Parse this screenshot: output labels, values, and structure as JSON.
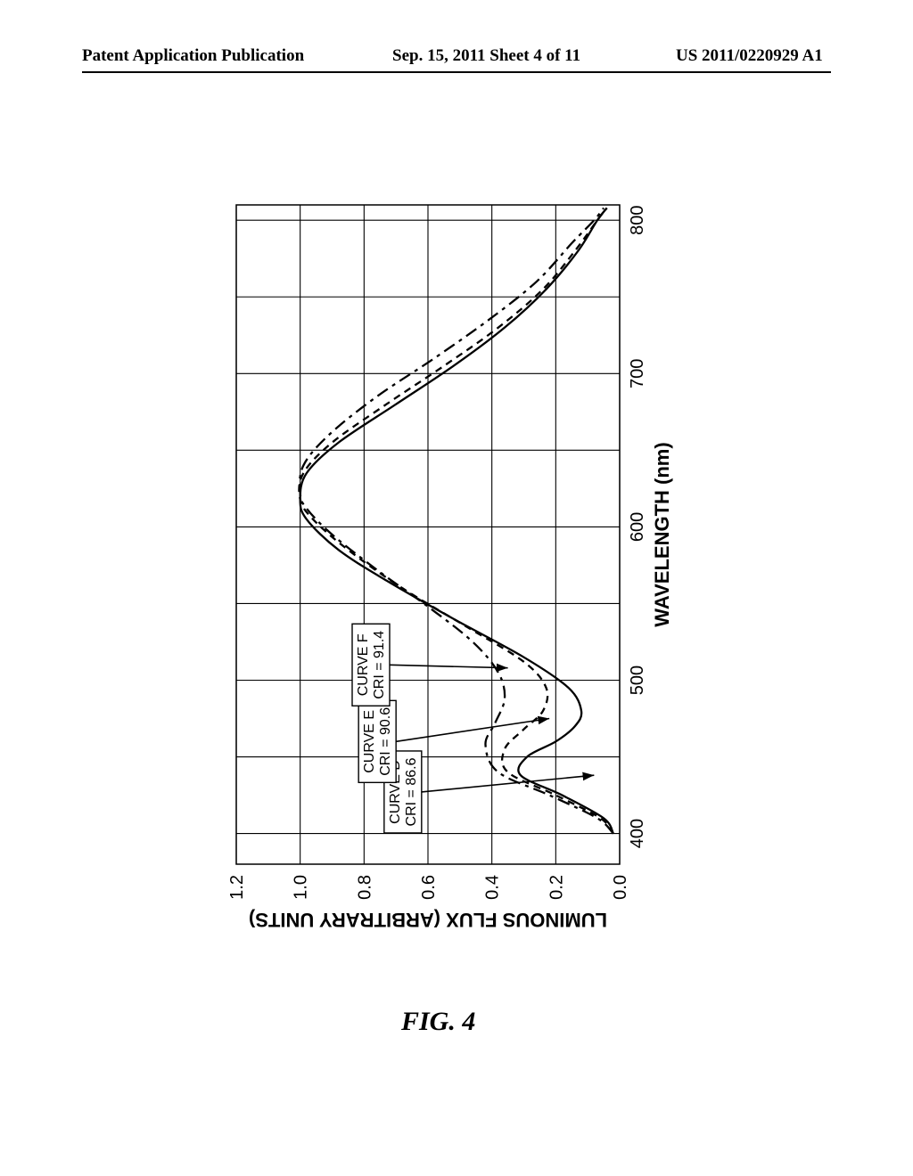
{
  "header": {
    "left": "Patent Application Publication",
    "center": "Sep. 15, 2011  Sheet 4 of 11",
    "right": "US 2011/0220929 A1"
  },
  "figure_caption": "FIG. 4",
  "chart": {
    "type": "line",
    "orientation": "rotated-90-ccw",
    "background_color": "#ffffff",
    "grid_color": "#000000",
    "axis_color": "#000000",
    "line_color": "#000000",
    "text_color": "#000000",
    "line_width_axis": 1.5,
    "line_width_grid": 1.1,
    "line_width_series": 2.3,
    "font_size_tick": 20,
    "font_size_axis_label": 22,
    "x_axis": {
      "label": "WAVELENGTH (nm)",
      "lim": [
        380,
        810
      ],
      "ticks": [
        400,
        500,
        600,
        700,
        800
      ],
      "minor_step": 50
    },
    "y_axis": {
      "label": "LUMINOUS FLUX (ARBITRARY UNITS)",
      "lim": [
        0.0,
        1.2
      ],
      "ticks": [
        0.0,
        0.2,
        0.4,
        0.6,
        0.8,
        1.0,
        1.2
      ],
      "tick_labels": [
        "0.0",
        "0.2",
        "0.4",
        "0.6",
        "0.8",
        "1.0",
        "1.2"
      ]
    },
    "curve_labels": [
      {
        "id": "D",
        "text_line1": "CURVE D",
        "text_line2": "CRI = 86.6",
        "arrow_to_x": 440,
        "arrow_to_y": 0.1
      },
      {
        "id": "E",
        "text_line1": "CURVE E",
        "text_line2": "CRI = 90.6",
        "arrow_to_x": 475,
        "arrow_to_y": 0.22
      },
      {
        "id": "F",
        "text_line1": "CURVE F",
        "text_line2": "CRI = 91.4",
        "arrow_to_x": 508,
        "arrow_to_y": 0.34
      }
    ],
    "series": [
      {
        "name": "Curve D",
        "dash": "none",
        "points": [
          [
            400,
            0.02
          ],
          [
            410,
            0.05
          ],
          [
            425,
            0.18
          ],
          [
            438,
            0.31
          ],
          [
            450,
            0.29
          ],
          [
            460,
            0.2
          ],
          [
            470,
            0.14
          ],
          [
            480,
            0.12
          ],
          [
            495,
            0.16
          ],
          [
            515,
            0.3
          ],
          [
            540,
            0.52
          ],
          [
            565,
            0.73
          ],
          [
            585,
            0.88
          ],
          [
            605,
            0.98
          ],
          [
            618,
            1.0
          ],
          [
            635,
            0.98
          ],
          [
            655,
            0.88
          ],
          [
            680,
            0.7
          ],
          [
            705,
            0.52
          ],
          [
            730,
            0.36
          ],
          [
            755,
            0.23
          ],
          [
            780,
            0.13
          ],
          [
            800,
            0.07
          ],
          [
            808,
            0.04
          ]
        ]
      },
      {
        "name": "Curve E",
        "dash": "8 6",
        "points": [
          [
            400,
            0.02
          ],
          [
            410,
            0.06
          ],
          [
            425,
            0.2
          ],
          [
            440,
            0.35
          ],
          [
            455,
            0.36
          ],
          [
            468,
            0.3
          ],
          [
            480,
            0.24
          ],
          [
            495,
            0.23
          ],
          [
            512,
            0.3
          ],
          [
            535,
            0.48
          ],
          [
            560,
            0.68
          ],
          [
            585,
            0.85
          ],
          [
            605,
            0.96
          ],
          [
            618,
            1.0
          ],
          [
            635,
            0.99
          ],
          [
            655,
            0.9
          ],
          [
            680,
            0.73
          ],
          [
            705,
            0.55
          ],
          [
            730,
            0.38
          ],
          [
            755,
            0.24
          ],
          [
            780,
            0.14
          ],
          [
            800,
            0.07
          ],
          [
            808,
            0.04
          ]
        ]
      },
      {
        "name": "Curve F",
        "dash": "14 6 4 6",
        "points": [
          [
            400,
            0.02
          ],
          [
            410,
            0.07
          ],
          [
            425,
            0.22
          ],
          [
            440,
            0.38
          ],
          [
            458,
            0.42
          ],
          [
            472,
            0.39
          ],
          [
            488,
            0.36
          ],
          [
            505,
            0.38
          ],
          [
            525,
            0.46
          ],
          [
            548,
            0.6
          ],
          [
            572,
            0.76
          ],
          [
            595,
            0.9
          ],
          [
            612,
            0.98
          ],
          [
            622,
            1.0
          ],
          [
            640,
            0.99
          ],
          [
            660,
            0.91
          ],
          [
            685,
            0.76
          ],
          [
            710,
            0.58
          ],
          [
            735,
            0.41
          ],
          [
            760,
            0.26
          ],
          [
            785,
            0.15
          ],
          [
            800,
            0.08
          ],
          [
            808,
            0.05
          ]
        ]
      }
    ]
  }
}
